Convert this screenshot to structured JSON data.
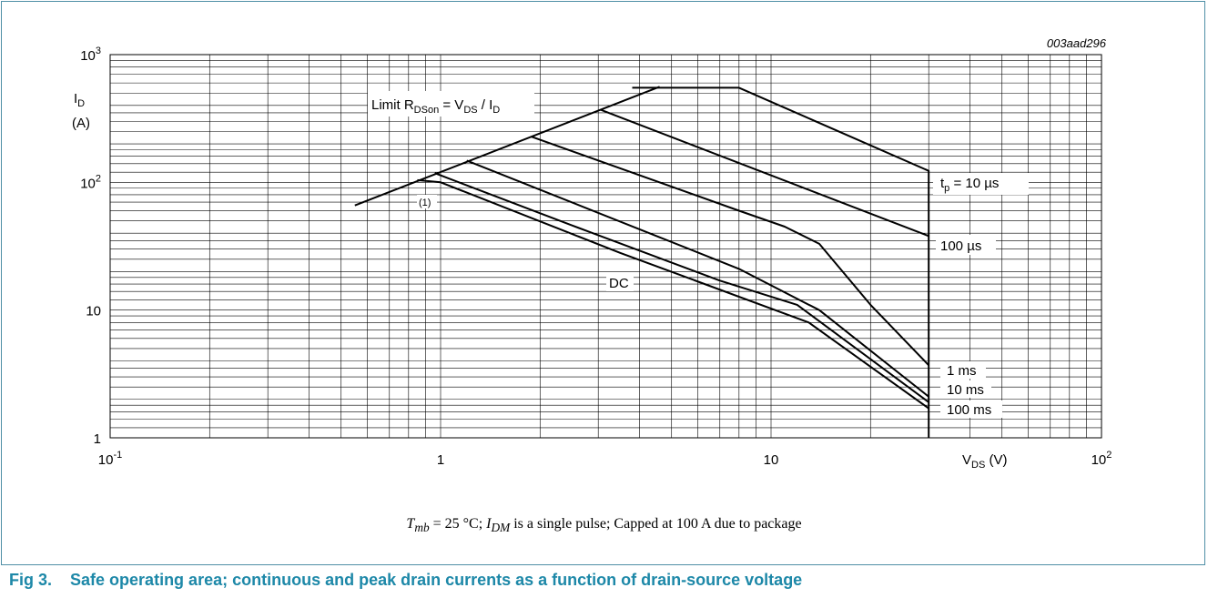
{
  "figure": {
    "code": "003aad296",
    "caption": "T_mb = 25 °C; I_DM is a single pulse; Capped at 100 A due to package",
    "caption_parts": {
      "t": "T",
      "t_sub": "mb",
      "mid": " = 25 °C; ",
      "i": "I",
      "i_sub": "DM",
      "rest": " is a single pulse; Capped at 100 A due to package"
    },
    "title_number": "Fig 3.",
    "title_text": "Safe operating area; continuous and peak drain currents as a function of drain-source voltage"
  },
  "chart_data": {
    "type": "line",
    "x_scale": "log",
    "y_scale": "log",
    "xlim": [
      0.1,
      100
    ],
    "ylim": [
      1,
      1000
    ],
    "grid": true,
    "xlabel": {
      "main": "V",
      "sub": "DS",
      "unit": " (V)"
    },
    "ylabel": {
      "main": "I",
      "sub": "D",
      "unit": "(A)"
    },
    "x_ticks": [
      {
        "value": 0.1,
        "base": "10",
        "exp": "-1"
      },
      {
        "value": 1,
        "base": "1",
        "exp": ""
      },
      {
        "value": 10,
        "base": "10",
        "exp": ""
      },
      {
        "value": 100,
        "base": "10",
        "exp": "2"
      }
    ],
    "y_ticks": [
      {
        "value": 1,
        "base": "1",
        "exp": ""
      },
      {
        "value": 10,
        "base": "10",
        "exp": ""
      },
      {
        "value": 100,
        "base": "10",
        "exp": "2"
      },
      {
        "value": 1000,
        "base": "10",
        "exp": "3"
      }
    ],
    "series": [
      {
        "name": "Limit RDSon = VDS / ID",
        "points": [
          [
            0.55,
            66
          ],
          [
            4.6,
            560
          ]
        ]
      },
      {
        "name": "tp = 10 µs",
        "points": [
          [
            3.8,
            550
          ],
          [
            8,
            550
          ],
          [
            30,
            123
          ],
          [
            30,
            1
          ]
        ]
      },
      {
        "name": "100 µs",
        "points": [
          [
            3.05,
            370
          ],
          [
            30,
            38
          ]
        ]
      },
      {
        "name": "1 ms",
        "points": [
          [
            1.88,
            228
          ],
          [
            8,
            60
          ],
          [
            11,
            45
          ],
          [
            14,
            33
          ],
          [
            20,
            11
          ],
          [
            30,
            3.7
          ]
        ]
      },
      {
        "name": "10 ms",
        "points": [
          [
            1.2,
            148
          ],
          [
            8,
            21
          ],
          [
            14,
            10
          ],
          [
            30,
            2.1
          ]
        ]
      },
      {
        "name": "100 ms",
        "points": [
          [
            0.96,
            118
          ],
          [
            2.5,
            46
          ],
          [
            7,
            17
          ],
          [
            12,
            11
          ],
          [
            30,
            1.9
          ]
        ]
      },
      {
        "name": "DC",
        "points": [
          [
            0.85,
            104
          ],
          [
            1.0,
            100
          ],
          [
            3.5,
            28
          ],
          [
            13,
            8
          ],
          [
            30,
            1.7
          ]
        ]
      }
    ],
    "annotations": {
      "limit": {
        "pre": "Limit R",
        "sub1": "DSon",
        "mid": " = V",
        "sub2": "DS",
        "mid2": " / I",
        "sub3": "D"
      },
      "tp": {
        "t": "t",
        "sub": "p",
        "rest": " = 10 µs"
      },
      "l100us": "100 µs",
      "l1ms": "1 ms",
      "l10ms": "10 ms",
      "l100ms": "100 ms",
      "dc": "DC",
      "note": "(1)"
    }
  }
}
